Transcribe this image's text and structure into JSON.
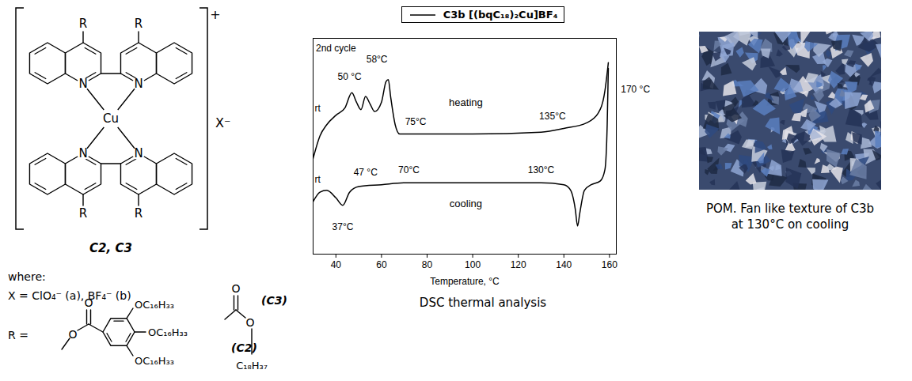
{
  "structure": {
    "substituent": "R",
    "nitrogen": "N",
    "metal": "Cu",
    "charge": "+",
    "counterion": "X⁻",
    "compound_label": "C2, C3",
    "where": "where:",
    "counterion_definition": "X = ClO₄⁻ (a), BF₄⁻ (b)",
    "r_label": "R =",
    "oxygen": "O",
    "alkoxy": "OC₁₆H₃₃",
    "c2_label": "(C2)",
    "c3_label": "(C3)",
    "c3_chain": "C₁₈H₃₇"
  },
  "chart_data": {
    "type": "line",
    "title": "C3b [(bqC₁₈)₂Cu]BF₄",
    "x_label": "Temperature, °C",
    "caption": "DSC thermal analysis",
    "xlim": [
      30,
      163
    ],
    "xticks": [
      40,
      60,
      80,
      100,
      120,
      140,
      160
    ],
    "ylim": [
      0,
      11.5
    ],
    "tick_labels": "x",
    "series": [
      {
        "name": "heating",
        "color": "#000000",
        "label_at": [
          97,
          7.9
        ],
        "x": [
          30,
          33,
          36,
          40,
          44,
          47,
          49,
          51,
          53,
          55,
          57,
          60,
          62,
          63,
          64,
          66,
          68,
          75,
          100,
          130,
          140,
          150,
          155,
          158,
          159.5
        ],
        "values": [
          5.1,
          6.3,
          6.9,
          7.4,
          7.8,
          8.6,
          8.1,
          7.7,
          8.4,
          8.0,
          7.6,
          8.1,
          9.2,
          9.3,
          8.4,
          6.9,
          6.4,
          6.4,
          6.4,
          6.5,
          6.7,
          7.0,
          7.5,
          8.7,
          10.2
        ]
      },
      {
        "name": "cooling",
        "color": "#000000",
        "label_at": [
          97,
          2.5
        ],
        "x": [
          30,
          33,
          36,
          40,
          43,
          46,
          50,
          60,
          70,
          100,
          130,
          140,
          143,
          145,
          146,
          147,
          149,
          152,
          156,
          158,
          159,
          159.5
        ],
        "values": [
          2.8,
          3.3,
          3.4,
          3.0,
          2.6,
          3.3,
          3.6,
          3.7,
          3.8,
          3.8,
          3.8,
          3.7,
          3.4,
          2.4,
          1.5,
          2.2,
          3.4,
          3.7,
          3.9,
          4.5,
          6.9,
          9.9
        ]
      }
    ],
    "annotations": [
      {
        "text": "2nd cycle",
        "x": 40,
        "y": 10.8
      },
      {
        "text": "rt",
        "x": 32,
        "y": 7.6
      },
      {
        "text": "50 °C",
        "x": 46,
        "y": 9.3
      },
      {
        "text": "58°C",
        "x": 58,
        "y": 10.2
      },
      {
        "text": "75°C",
        "x": 75,
        "y": 6.9
      },
      {
        "text": "135°C",
        "x": 135,
        "y": 7.2
      },
      {
        "text": "170 °C",
        "x": 165,
        "y": 8.6
      },
      {
        "text": "rt",
        "x": 32,
        "y": 3.8
      },
      {
        "text": "37°C",
        "x": 43,
        "y": 1.3
      },
      {
        "text": "47 °C",
        "x": 53,
        "y": 4.2
      },
      {
        "text": "70°C",
        "x": 72,
        "y": 4.3
      },
      {
        "text": "130°C",
        "x": 130,
        "y": 4.3
      }
    ]
  },
  "micrograph": {
    "caption": "POM. Fan like texture of C3b at 130°C on cooling"
  }
}
